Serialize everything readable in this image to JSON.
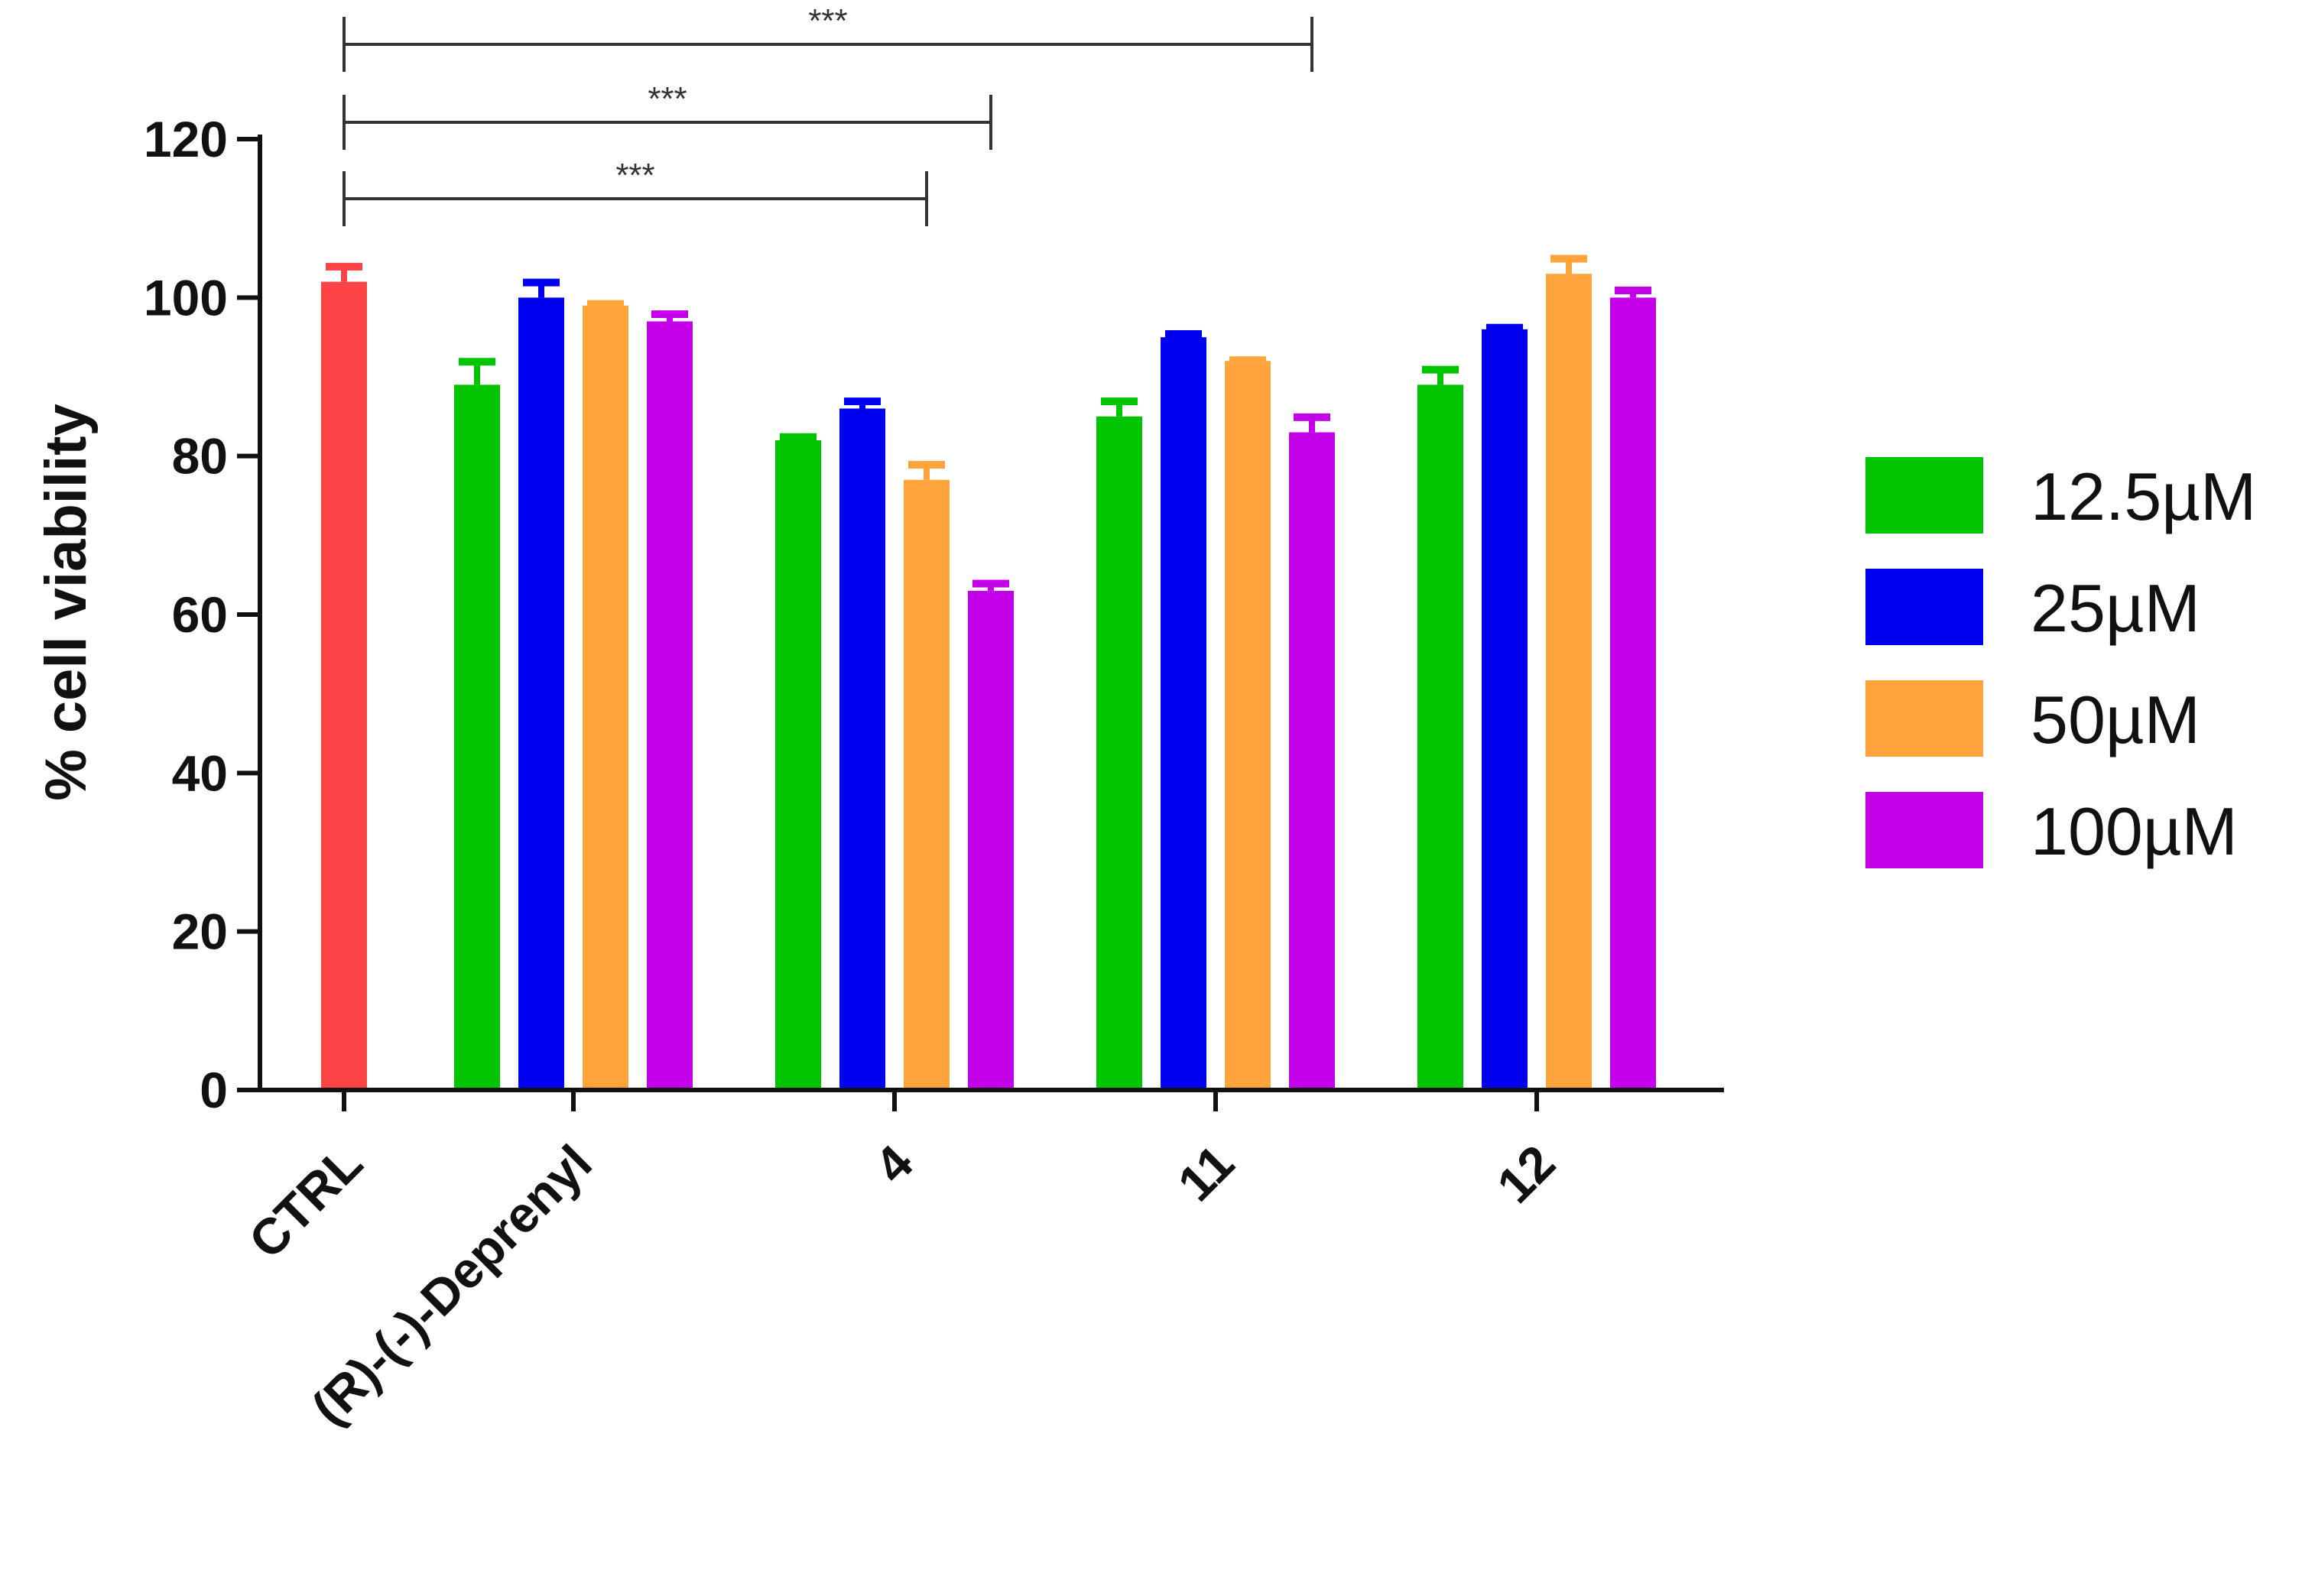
{
  "chart_data": {
    "type": "bar",
    "ylabel": "% cell viability",
    "xlabel": "",
    "ylim": [
      0,
      120
    ],
    "yticks": [
      0,
      20,
      40,
      60,
      80,
      100,
      120
    ],
    "categories": [
      "CTRL",
      "(R)-(-)-Deprenyl",
      "4",
      "11",
      "12"
    ],
    "control": {
      "category": "CTRL",
      "value": 102,
      "error": 2,
      "color": "#fc4446"
    },
    "series": [
      {
        "name": "12.5µM",
        "color": "#00c400",
        "values": [
          null,
          89,
          82,
          85,
          89
        ],
        "errors": [
          null,
          3,
          0.5,
          2,
          2
        ]
      },
      {
        "name": "25µM",
        "color": "#0000f0",
        "values": [
          null,
          100,
          86,
          95,
          96
        ],
        "errors": [
          null,
          2,
          1,
          0.5,
          0.3
        ]
      },
      {
        "name": "50µM",
        "color": "#fea43a",
        "values": [
          null,
          99,
          77,
          92,
          103
        ],
        "errors": [
          null,
          0.3,
          2,
          0.2,
          2
        ]
      },
      {
        "name": "100µM",
        "color": "#c400e8",
        "values": [
          null,
          97,
          63,
          83,
          100
        ],
        "errors": [
          null,
          1,
          1,
          2,
          1
        ]
      }
    ],
    "significance": [
      {
        "label": "***",
        "from": "CTRL",
        "to": "4 (50µM)",
        "level": 1
      },
      {
        "label": "***",
        "from": "CTRL",
        "to": "4 (100µM)",
        "level": 2
      },
      {
        "label": "***",
        "from": "CTRL",
        "to": "11 (100µM)",
        "level": 3
      }
    ],
    "legend_position": "right",
    "grid": false
  }
}
